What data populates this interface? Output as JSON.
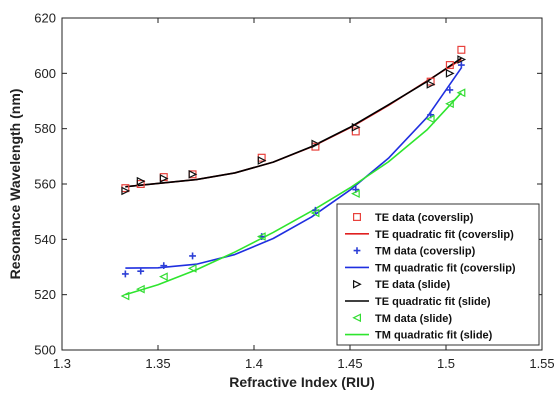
{
  "chart_data": {
    "type": "scatter",
    "xlabel": "Refractive Index (RIU)",
    "ylabel": "Resonance Wavelength (nm)",
    "xlim": [
      1.3,
      1.55
    ],
    "ylim": [
      500,
      620
    ],
    "xticks": [
      "1.3",
      "1.35",
      "1.4",
      "1.45",
      "1.5",
      "1.55"
    ],
    "yticks": [
      "500",
      "520",
      "540",
      "560",
      "580",
      "600",
      "620"
    ],
    "grid": false,
    "legend_position": "right",
    "series": [
      {
        "name": "TE data (coverslip)",
        "kind": "points",
        "marker": "square",
        "color": "#e8413c",
        "x": [
          1.333,
          1.341,
          1.353,
          1.368,
          1.404,
          1.432,
          1.453,
          1.492,
          1.502,
          1.508
        ],
        "y": [
          558.5,
          560.0,
          562.5,
          563.5,
          569.5,
          573.5,
          579.0,
          597.0,
          603.0,
          608.5
        ]
      },
      {
        "name": "TE quadratic fit (coverslip)",
        "kind": "curve",
        "color": "#e02020",
        "x": [
          1.333,
          1.35,
          1.37,
          1.39,
          1.41,
          1.43,
          1.45,
          1.47,
          1.49,
          1.508
        ],
        "y": [
          559.0,
          560.2,
          561.6,
          564.0,
          567.9,
          573.4,
          580.3,
          588.4,
          597.2,
          605.0
        ]
      },
      {
        "name": "TM data (coverslip)",
        "kind": "points",
        "marker": "plus",
        "color": "#2c3fd6",
        "x": [
          1.333,
          1.341,
          1.353,
          1.368,
          1.404,
          1.432,
          1.453,
          1.492,
          1.502,
          1.508
        ],
        "y": [
          527.5,
          528.5,
          530.5,
          534.0,
          541.0,
          550.5,
          558.0,
          585.0,
          594.0,
          603.0
        ]
      },
      {
        "name": "TM quadratic fit (coverslip)",
        "kind": "curve",
        "color": "#1f2fe0",
        "x": [
          1.333,
          1.35,
          1.37,
          1.39,
          1.41,
          1.43,
          1.45,
          1.47,
          1.49,
          1.508
        ],
        "y": [
          529.6,
          529.7,
          531.0,
          534.5,
          540.3,
          548.1,
          557.8,
          569.3,
          584.0,
          602.0
        ]
      },
      {
        "name": "TE data (slide)",
        "kind": "points",
        "marker": "triangle-right",
        "color": "#111111",
        "x": [
          1.333,
          1.341,
          1.353,
          1.368,
          1.404,
          1.432,
          1.453,
          1.492,
          1.502,
          1.508
        ],
        "y": [
          557.5,
          561.0,
          562.0,
          563.5,
          568.5,
          574.5,
          580.5,
          596.0,
          600.0,
          605.0
        ]
      },
      {
        "name": "TE quadratic fit (slide)",
        "kind": "curve",
        "color": "#000000",
        "x": [
          1.333,
          1.35,
          1.37,
          1.39,
          1.41,
          1.43,
          1.45,
          1.47,
          1.49,
          1.508
        ],
        "y": [
          559.0,
          560.2,
          561.6,
          564.0,
          567.9,
          573.5,
          580.5,
          588.6,
          597.0,
          605.5
        ]
      },
      {
        "name": "TM data (slide)",
        "kind": "points",
        "marker": "triangle-left",
        "color": "#33dd33",
        "x": [
          1.333,
          1.341,
          1.353,
          1.368,
          1.404,
          1.432,
          1.453,
          1.492,
          1.502,
          1.508
        ],
        "y": [
          519.5,
          522.0,
          526.5,
          529.5,
          541.0,
          549.5,
          556.5,
          583.5,
          589.0,
          593.0
        ]
      },
      {
        "name": "TM quadratic fit (slide)",
        "kind": "curve",
        "color": "#2ee52e",
        "x": [
          1.333,
          1.35,
          1.37,
          1.39,
          1.41,
          1.43,
          1.45,
          1.47,
          1.49,
          1.508
        ],
        "y": [
          520.0,
          523.6,
          529.0,
          535.4,
          542.5,
          550.2,
          558.6,
          568.0,
          579.5,
          593.0
        ]
      }
    ]
  }
}
